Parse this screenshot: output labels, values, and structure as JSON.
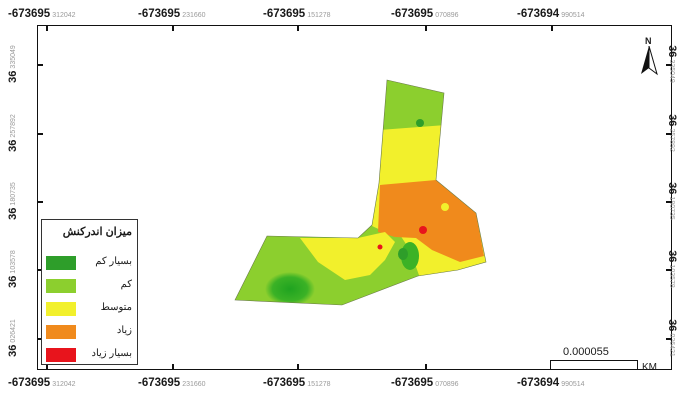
{
  "map": {
    "x_ticks_top": [
      {
        "label": "-673695",
        "small": "312042"
      },
      {
        "label": "-673695",
        "small": "231660"
      },
      {
        "label": "-673695",
        "small": "151278"
      },
      {
        "label": "-673695",
        "small": "070896"
      },
      {
        "label": "-673694",
        "small": "990514"
      }
    ],
    "x_ticks_bottom": [
      {
        "label": "-673695",
        "small": "312042"
      },
      {
        "label": "-673695",
        "small": "231660"
      },
      {
        "label": "-673695",
        "small": "151278"
      },
      {
        "label": "-673695",
        "small": "070896"
      },
      {
        "label": "-673694",
        "small": "990514"
      }
    ],
    "y_ticks": [
      {
        "label": "36",
        "small": "335049"
      },
      {
        "label": "36",
        "small": "257892"
      },
      {
        "label": "36",
        "small": "180735"
      },
      {
        "label": "36",
        "small": "103578"
      },
      {
        "label": "36",
        "small": "026421"
      }
    ],
    "north_label": "N",
    "scale": {
      "value": "0.000055",
      "unit": "KM"
    }
  },
  "legend": {
    "title": "میزان اندرکنش",
    "items": [
      {
        "label": "بسیار کم",
        "color": "#2e9e2a"
      },
      {
        "label": "کم",
        "color": "#8ccf2e"
      },
      {
        "label": "متوسط",
        "color": "#f2f02c"
      },
      {
        "label": "زیاد",
        "color": "#f08a1c"
      },
      {
        "label": "بسیار زیاد",
        "color": "#e8141c"
      }
    ]
  }
}
